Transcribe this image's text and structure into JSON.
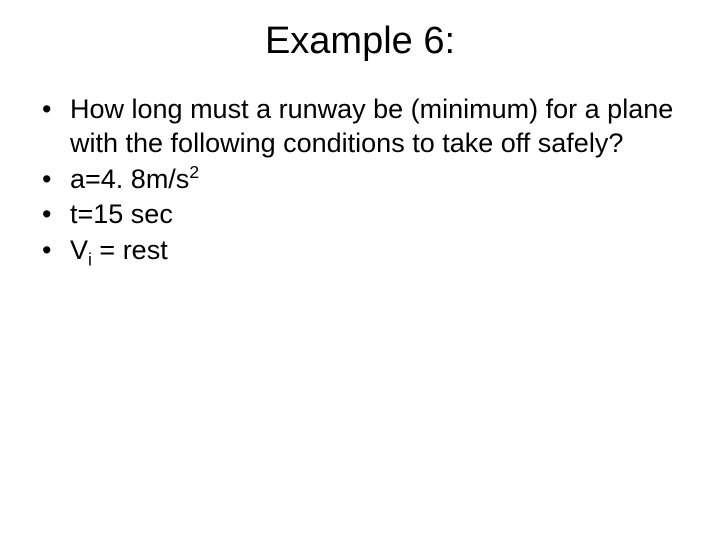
{
  "title": "Example 6:",
  "bullets": [
    {
      "text": "How long must a runway be (minimum) for a plane with the following conditions to take off safely?"
    },
    {
      "prefix": "a=4. 8m/s",
      "sup": "2"
    },
    {
      "text": "t=15 sec"
    },
    {
      "pre": "V",
      "sub": "i",
      "post": " = rest"
    }
  ],
  "style": {
    "background_color": "#ffffff",
    "text_color": "#000000",
    "title_fontsize": 38,
    "body_fontsize": 27,
    "font_family": "Arial"
  }
}
